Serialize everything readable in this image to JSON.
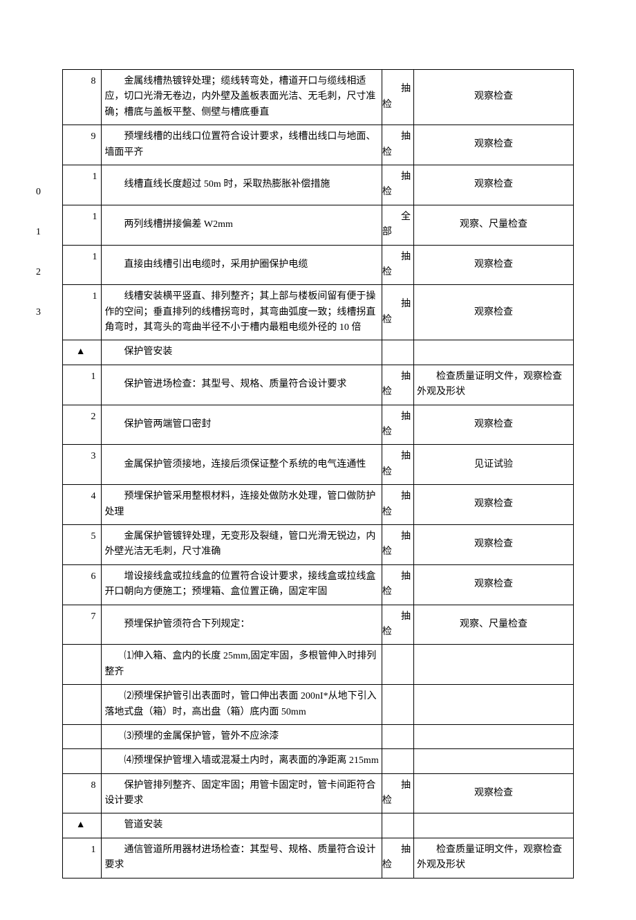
{
  "colors": {
    "border": "#000000",
    "bg": "#ffffff",
    "text": "#000000"
  },
  "layout": {
    "col_num_width": 55,
    "col_desc_width": 395,
    "col_check_width": 45,
    "col_method_width": 225,
    "font_size": 14,
    "font_family": "SimSun"
  },
  "rows": [
    {
      "num": "8",
      "desc": "金属线槽热镀锌处理；缆线转弯处，槽道开口与缆线相适应，切口光滑无卷边，内外壁及盖板表面光洁、无毛刺，尺寸准确；槽底与盖板平整、侧壁与槽底垂直",
      "check_top": "抽",
      "check_bot": "检",
      "method": "观察检查"
    },
    {
      "num": "9",
      "desc": "预埋线槽的出线口位置符合设计要求，线槽出线口与地面、墙面平齐",
      "check_top": "抽",
      "check_bot": "检",
      "method": "观察检查"
    },
    {
      "num": "10",
      "desc": "线槽直线长度超过 50m 时，采取热膨胀补偿措施",
      "check_top": "抽",
      "check_bot": "检",
      "method": "观察检查"
    },
    {
      "num": "11",
      "desc": "两列线槽拼接偏差 W2mm",
      "check_top": "全",
      "check_bot": "部",
      "method": "观察、尺量检查"
    },
    {
      "num": "12",
      "desc": "直接由线槽引出电缆时，采用护圈保护电缆",
      "check_top": "抽",
      "check_bot": "检",
      "method": "观察检查"
    },
    {
      "num": "13",
      "desc": "线槽安装横平竖直、排列整齐；其上部与楼板间留有便于操作的空间；垂直排列的线槽拐弯时，其弯曲弧度一致；线槽拐直角弯时，其弯头的弯曲半径不小于槽内最粗电缆外径的 10 倍",
      "check_top": "抽",
      "check_bot": "检",
      "method": "观察检查"
    }
  ],
  "section1": {
    "marker": "▲",
    "title": "保护管安装"
  },
  "section1_rows": [
    {
      "num": "1",
      "desc": "保护管进场检查：其型号、规格、质量符合设计要求",
      "check_top": "抽",
      "check_bot": "检",
      "method": "检查质量证明文件，观察检查外观及形状"
    },
    {
      "num": "2",
      "desc": "保护管两端管口密封",
      "check_top": "抽",
      "check_bot": "检",
      "method": "观察检查"
    },
    {
      "num": "3",
      "desc": "金属保护管须接地，连接后须保证整个系统的电气连通性",
      "check_top": "抽",
      "check_bot": "检",
      "method": "见证试验"
    },
    {
      "num": "4",
      "desc": "预埋保护管采用整根材料，连接处做防水处理，管口做防护处理",
      "check_top": "抽",
      "check_bot": "检",
      "method": "观察检查"
    },
    {
      "num": "5",
      "desc": "金属保护管镀锌处理，无变形及裂缝，管口光滑无锐边，内外壁光洁无毛刺，尺寸准确",
      "check_top": "抽",
      "check_bot": "检",
      "method": "观察检查"
    },
    {
      "num": "6",
      "desc": "增设接线盒或拉线盒的位置符合设计要求，接线盒或拉线盒开口朝向方便施工；预埋箱、盒位置正确，固定牢固",
      "check_top": "抽",
      "check_bot": "检",
      "method": "观察检查"
    },
    {
      "num": "7",
      "desc": "预埋保护管须符合下列规定：",
      "check_top": "抽",
      "check_bot": "检",
      "method": "观察、尺量检查"
    }
  ],
  "sub_rows": [
    {
      "desc": "⑴伸入箱、盒内的长度 25mm,固定牢固，多根管伸入时排列整齐"
    },
    {
      "desc": "⑵预埋保护管引出表面时，管口伸出表面 200nI*从地下引入落地式盘（箱）时，高出盘（箱）底内面 50mm"
    },
    {
      "desc": "⑶预埋的金属保护管，管外不应涂漆"
    },
    {
      "desc": "⑷预埋保护管埋入墙或混凝土内时，离表面的净距离 215mm"
    }
  ],
  "row_8": {
    "num": "8",
    "desc": "保护管排列整齐、固定牢固；用管卡固定时，管卡间距符合设计要求",
    "check_top": "抽",
    "check_bot": "检",
    "method": "观察检查"
  },
  "section2": {
    "marker": "▲",
    "title": "管道安装"
  },
  "section2_rows": [
    {
      "num": "1",
      "desc": "通信管道所用器材进场检查：其型号、规格、质量符合设计要求",
      "check_top": "抽",
      "check_bot": "检",
      "method": "检查质量证明文件，观察检查外观及形状"
    }
  ]
}
